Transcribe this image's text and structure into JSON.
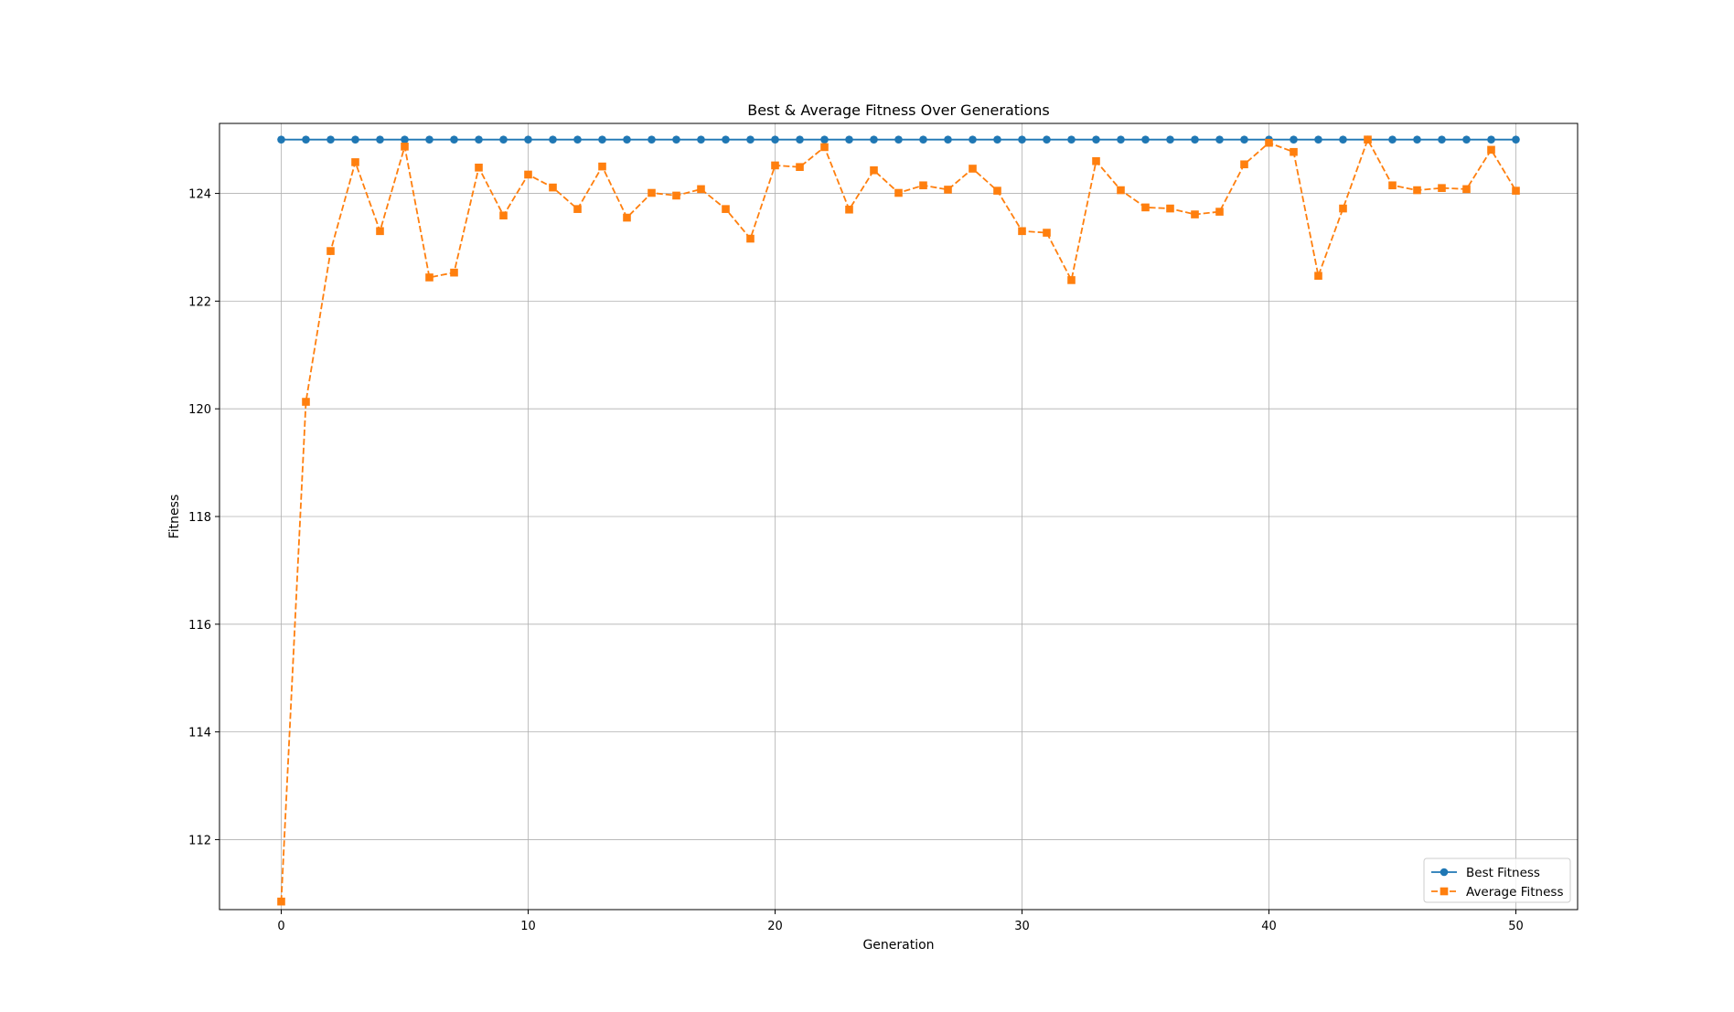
{
  "chart_data": {
    "type": "line",
    "title": "Best & Average Fitness Over Generations",
    "xlabel": "Generation",
    "ylabel": "Fitness",
    "xlim": [
      -2.5,
      52.5
    ],
    "ylim": [
      110.7,
      125.3
    ],
    "xticks": [
      0,
      10,
      20,
      30,
      40,
      50
    ],
    "yticks": [
      112,
      114,
      116,
      118,
      120,
      122,
      124
    ],
    "grid": true,
    "legend_position": "lower-right",
    "x": [
      0,
      1,
      2,
      3,
      4,
      5,
      6,
      7,
      8,
      9,
      10,
      11,
      12,
      13,
      14,
      15,
      16,
      17,
      18,
      19,
      20,
      21,
      22,
      23,
      24,
      25,
      26,
      27,
      28,
      29,
      30,
      31,
      32,
      33,
      34,
      35,
      36,
      37,
      38,
      39,
      40,
      41,
      42,
      43,
      44,
      45,
      46,
      47,
      48,
      49,
      50
    ],
    "series": [
      {
        "name": "Best Fitness",
        "color": "#1f77b4",
        "marker": "circle",
        "linestyle": "solid",
        "values": [
          125,
          125,
          125,
          125,
          125,
          125,
          125,
          125,
          125,
          125,
          125,
          125,
          125,
          125,
          125,
          125,
          125,
          125,
          125,
          125,
          125,
          125,
          125,
          125,
          125,
          125,
          125,
          125,
          125,
          125,
          125,
          125,
          125,
          125,
          125,
          125,
          125,
          125,
          125,
          125,
          125,
          125,
          125,
          125,
          125,
          125,
          125,
          125,
          125,
          125,
          125
        ]
      },
      {
        "name": "Average Fitness",
        "color": "#ff7f0e",
        "marker": "square",
        "linestyle": "dashed",
        "values": [
          110.85,
          120.13,
          122.93,
          124.58,
          123.3,
          124.87,
          122.44,
          122.53,
          124.48,
          123.59,
          124.35,
          124.11,
          123.71,
          124.5,
          123.55,
          124.01,
          123.96,
          124.08,
          123.71,
          123.16,
          124.52,
          124.49,
          124.86,
          123.7,
          124.43,
          124.01,
          124.15,
          124.07,
          124.46,
          124.05,
          123.3,
          123.27,
          122.39,
          124.6,
          124.06,
          123.74,
          123.72,
          123.61,
          123.66,
          124.54,
          124.94,
          124.77,
          122.47,
          123.72,
          125,
          124.15,
          124.06,
          124.1,
          124.08,
          124.81,
          124.05
        ]
      }
    ]
  }
}
